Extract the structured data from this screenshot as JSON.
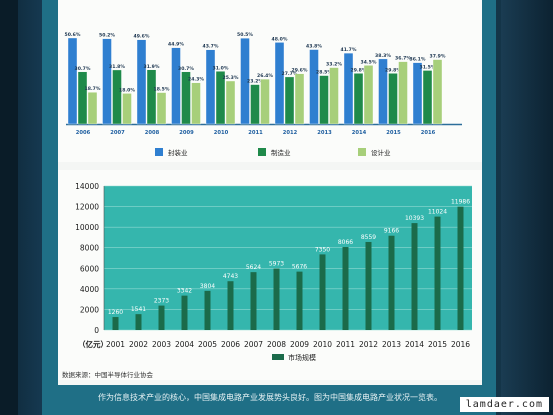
{
  "top_chart": {
    "years": [
      "2006",
      "2007",
      "2008",
      "2009",
      "2010",
      "2011",
      "2012",
      "2013",
      "2014",
      "2015",
      "2016"
    ],
    "legend": [
      "封装业",
      "制造业",
      "设计业"
    ],
    "colors": {
      "packaging": "#2f7fd0",
      "manufacturing": "#1f8a4a",
      "design": "#a7cf7a"
    },
    "packaging": [
      50.6,
      50.2,
      49.6,
      44.9,
      43.7,
      50.5,
      48.0,
      43.8,
      41.7,
      38.3,
      36.1
    ],
    "manufacturing": [
      30.7,
      31.8,
      31.9,
      30.7,
      31.0,
      23.2,
      27.7,
      28.5,
      29.8,
      29.8,
      31.5
    ],
    "design": [
      18.7,
      18.0,
      18.5,
      24.3,
      25.3,
      26.4,
      29.6,
      33.2,
      34.5,
      36.7,
      37.9
    ],
    "packaging_labels": [
      "50.6%",
      "50.2%",
      "49.6%",
      "44.9%",
      "43.7%",
      "50.5%",
      "48.0%",
      "43.8%",
      "41.7%",
      "38.3%",
      "36.1%"
    ],
    "manufacturing_labels": [
      "30.7%",
      "31.8%",
      "31.9%",
      "30.7%",
      "31.0%",
      "23.2%",
      "27.7%",
      "28.5%",
      "29.8%",
      "29.8%",
      "31.5%"
    ],
    "design_labels": [
      "18.7%",
      "18.0%",
      "18.5%",
      "24.3%",
      "25.3%",
      "26.4%",
      "29.6%",
      "33.2%",
      "34.5%",
      "36.7%",
      "37.9%"
    ]
  },
  "chart_data": {
    "type": "bar",
    "categories": [
      "2001",
      "2002",
      "2003",
      "2004",
      "2005",
      "2006",
      "2007",
      "2008",
      "2009",
      "2010",
      "2011",
      "2012",
      "2013",
      "2014",
      "2015",
      "2016"
    ],
    "values": [
      1260,
      1541,
      2373,
      3342,
      3804,
      4743,
      5624,
      5973,
      5676,
      7350,
      8066,
      8559,
      9166,
      10393,
      11024,
      11986
    ],
    "value_labels": [
      "1260",
      "1541",
      "2373",
      "3342",
      "3804",
      "4743",
      "5624",
      "5973",
      "5676",
      "7350",
      "8066",
      "8559",
      "9166",
      "10393",
      "11024",
      "11986"
    ],
    "yticks": [
      "0",
      "2000",
      "4000",
      "6000",
      "8000",
      "10000",
      "12000",
      "14000"
    ],
    "ylim": [
      0,
      14000
    ],
    "ylabel": "（亿元）",
    "legend": "市场规模",
    "bar_color": "#1b6b4a",
    "plot_bg": "#35b6ad"
  },
  "source": "数据来源：中国半导体行业协会",
  "caption": "作为信息技术产业的核心，中国集成电路产业发展势头良好。图为中国集成电路产业状况一览表。",
  "watermark": "lamdaer.com"
}
